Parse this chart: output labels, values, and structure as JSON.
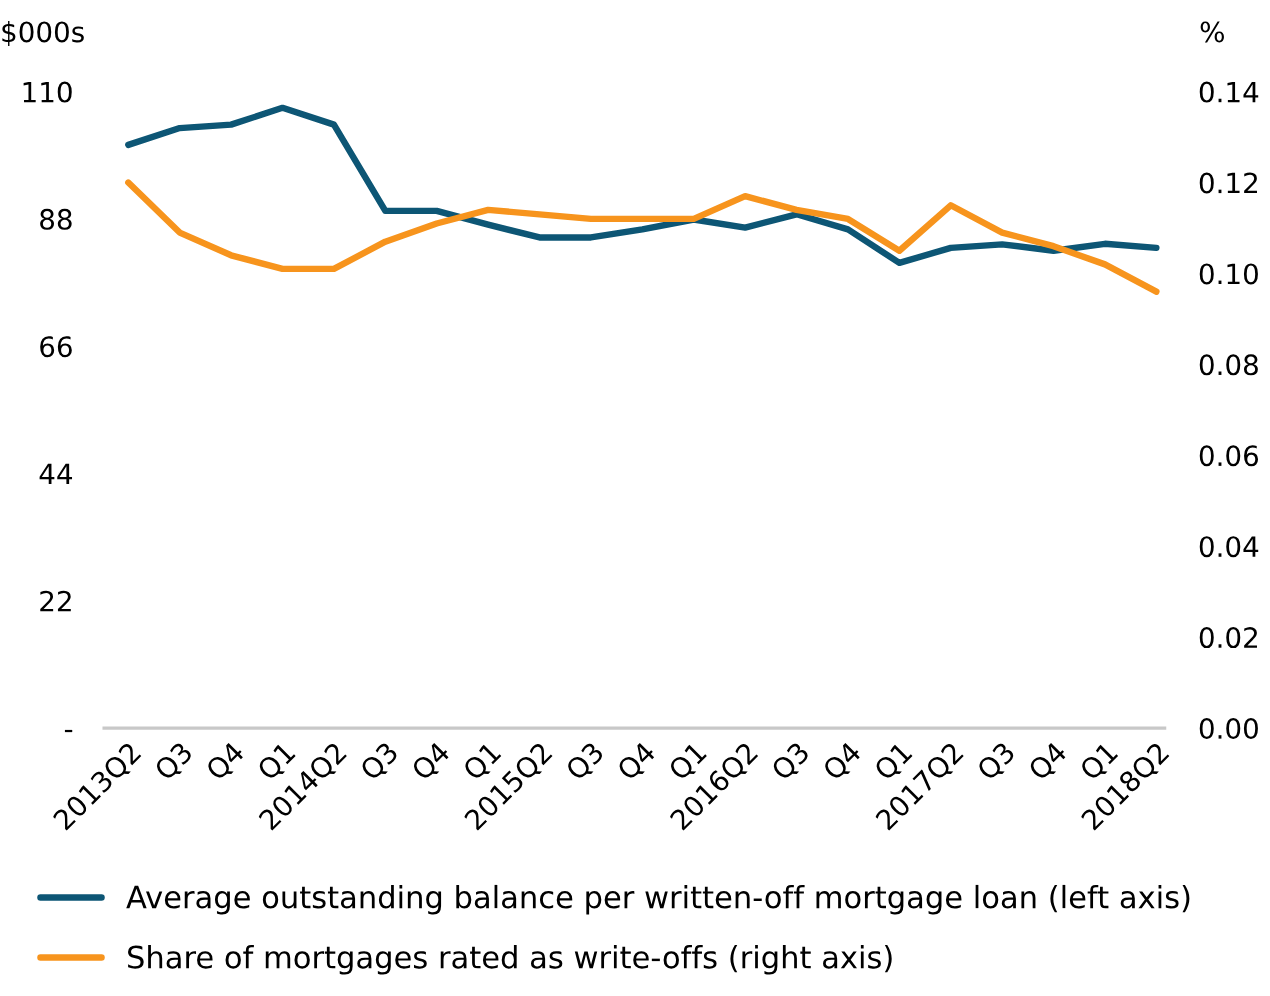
{
  "chart_data": {
    "type": "line",
    "categories": [
      "2013Q2",
      "Q3",
      "Q4",
      "Q1",
      "2014Q2",
      "Q3",
      "Q4",
      "Q1",
      "2015Q2",
      "Q3",
      "Q4",
      "Q1",
      "2016Q2",
      "Q3",
      "Q4",
      "Q1",
      "2017Q2",
      "Q3",
      "Q4",
      "Q1",
      "2018Q2"
    ],
    "ylabel": "$000s",
    "y2label": "%",
    "ylim": [
      0,
      110
    ],
    "yticks": [
      {
        "value": 0,
        "label": "-"
      },
      22,
      44,
      66,
      88,
      110
    ],
    "y2lim": [
      0,
      0.14
    ],
    "y2ticks": [
      {
        "value": 0,
        "label": "0.00"
      },
      0.02,
      0.04,
      0.06,
      0.08,
      {
        "value": 0.1,
        "label": "0.10"
      },
      0.12,
      0.14
    ],
    "legend": "bottom",
    "grid": false,
    "line_style": "solid",
    "series": [
      {
        "name": "Average outstanding balance per written-off mortgage loan (left axis)",
        "color": "#0d5675",
        "values": [
          100.8,
          103.7,
          104.3,
          107.2,
          104.3,
          89.4,
          89.4,
          87.0,
          84.8,
          84.8,
          86.2,
          87.9,
          86.5,
          88.8,
          86.2,
          80.4,
          83.0,
          83.6,
          82.5,
          83.7,
          83.0
        ]
      },
      {
        "name": "Share of mortgages rated as write-offs (right axis)",
        "color": "#f7941d",
        "axis": "y2",
        "values": [
          0.12,
          0.109,
          0.104,
          0.101,
          0.101,
          0.107,
          0.111,
          0.114,
          0.113,
          0.112,
          0.112,
          0.112,
          0.117,
          0.114,
          0.112,
          0.105,
          0.115,
          0.109,
          0.106,
          0.102,
          0.096
        ]
      }
    ]
  }
}
